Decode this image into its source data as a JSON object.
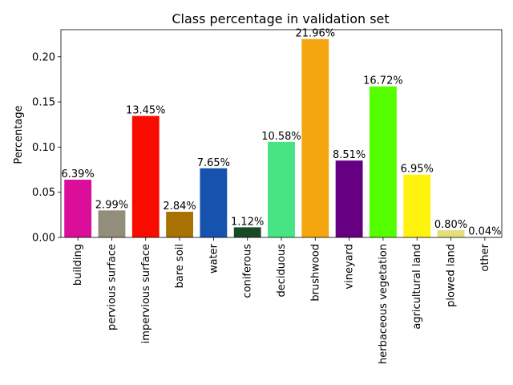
{
  "chart_data": {
    "type": "bar",
    "title": "Class percentage in validation set",
    "xlabel": "",
    "ylabel": "Percentage",
    "ylim": [
      0,
      0.23
    ],
    "yticks": [
      0.0,
      0.05,
      0.1,
      0.15,
      0.2
    ],
    "ytick_labels": [
      "0.00",
      "0.05",
      "0.10",
      "0.15",
      "0.20"
    ],
    "grid": false,
    "categories": [
      "building",
      "pervious surface",
      "impervious surface",
      "bare soil",
      "water",
      "coniferous",
      "deciduous",
      "brushwood",
      "vineyard",
      "herbaceous vegetation",
      "agricultural land",
      "plowed land",
      "other"
    ],
    "values": [
      0.0639,
      0.0299,
      0.1345,
      0.0284,
      0.0765,
      0.0112,
      0.1058,
      0.2196,
      0.0851,
      0.1672,
      0.0695,
      0.008,
      0.0004
    ],
    "value_labels": [
      "6.39%",
      "2.99%",
      "13.45%",
      "2.84%",
      "7.65%",
      "1.12%",
      "10.58%",
      "21.96%",
      "8.51%",
      "16.72%",
      "6.95%",
      "0.80%",
      "0.04%"
    ],
    "colors": [
      "#db0e9a",
      "#938e7b",
      "#f80c00",
      "#a97101",
      "#1553ae",
      "#194a26",
      "#46e483",
      "#f3a60d",
      "#660082",
      "#55ff00",
      "#fff30d",
      "#e4df7c",
      "#000000"
    ]
  }
}
